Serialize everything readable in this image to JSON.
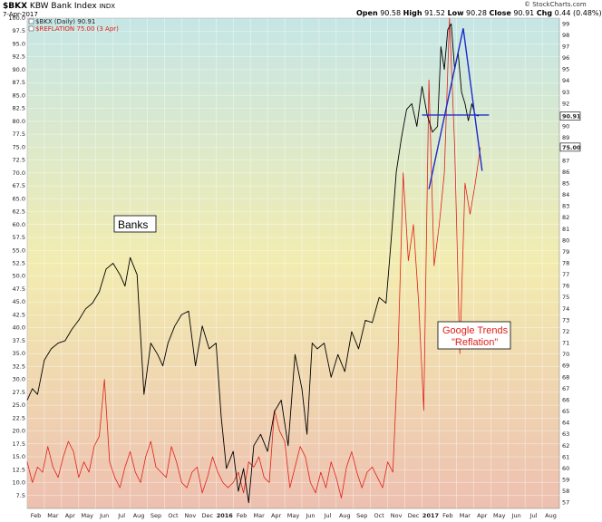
{
  "header": {
    "symbol": "$BKX",
    "name": "KBW Bank Index",
    "exchange": "INDX",
    "date": "7-Apr-2017",
    "open_label": "Open",
    "open": "90.58",
    "high_label": "High",
    "high": "91.52",
    "low_label": "Low",
    "low": "90.28",
    "close_label": "Close",
    "close": "90.91",
    "chg_label": "Chg",
    "chg": "0.44 (0.48%)",
    "logo": "© StockCharts.com"
  },
  "colors": {
    "bkx": "#000000",
    "reflation": "#e0201a",
    "trendline": "#1a2bcc",
    "bg_top": "#c5e6e6",
    "bg_mid": "#f2ecb0",
    "bg_bottom": "#edc0b0"
  },
  "icons": {
    "legend_checkbox": "checkbox-icon",
    "logo": "stockcharts-logo-icon"
  },
  "chart_data": {
    "type": "line",
    "title": "$BKX KBW Bank Index INDX",
    "left_axis": {
      "ylim": [
        5.0,
        100.0
      ],
      "ticks": [
        7.5,
        10.0,
        12.5,
        15.0,
        17.5,
        20.0,
        22.5,
        25.0,
        27.5,
        30.0,
        32.5,
        35.0,
        37.5,
        40.0,
        42.5,
        45.0,
        47.5,
        50.0,
        52.5,
        55.0,
        57.5,
        60.0,
        62.5,
        65.0,
        67.5,
        70.0,
        72.5,
        75.0,
        77.5,
        80.0,
        82.5,
        85.0,
        87.5,
        90.0,
        92.5,
        95.0,
        97.5,
        100.0
      ]
    },
    "right_axis": {
      "ylim": [
        56.5,
        99.5
      ],
      "ticks": [
        57,
        58,
        59,
        60,
        61,
        62,
        63,
        64,
        65,
        66,
        67,
        68,
        69,
        70,
        71,
        72,
        73,
        74,
        75,
        76,
        77,
        78,
        79,
        80,
        81,
        82,
        83,
        84,
        85,
        86,
        87,
        88,
        89,
        90,
        91,
        92,
        93,
        94,
        95,
        96,
        97,
        98,
        99
      ],
      "last_value_badges": [
        "90.91",
        "75.00"
      ]
    },
    "x_axis": {
      "labels": [
        "Feb",
        "Mar",
        "Apr",
        "May",
        "Jun",
        "Jul",
        "Aug",
        "Sep",
        "Oct",
        "Nov",
        "Dec",
        "2016",
        "Feb",
        "Mar",
        "Apr",
        "May",
        "Jun",
        "Jul",
        "Aug",
        "Sep",
        "Oct",
        "Nov",
        "Dec",
        "2017",
        "Feb",
        "Mar",
        "Apr",
        "May",
        "Jun",
        "Jul",
        "Aug"
      ],
      "bold_labels": [
        "2016",
        "2017"
      ],
      "range_months": [
        0,
        31
      ]
    },
    "grid": true,
    "legend_placement": "top-left",
    "series": [
      {
        "name": "$BKX (Daily) 90.91",
        "axis": "right",
        "t": [
          0.0,
          0.3,
          0.6,
          1.0,
          1.4,
          1.8,
          2.2,
          2.6,
          3.0,
          3.4,
          3.8,
          4.2,
          4.6,
          5.0,
          5.4,
          5.7,
          6.0,
          6.4,
          6.8,
          7.2,
          7.6,
          7.9,
          8.2,
          8.6,
          9.0,
          9.4,
          9.8,
          10.2,
          10.6,
          11.0,
          11.3,
          11.6,
          12.0,
          12.3,
          12.6,
          12.9,
          13.2,
          13.6,
          14.0,
          14.4,
          14.8,
          15.2,
          15.6,
          16.0,
          16.3,
          16.6,
          16.9,
          17.3,
          17.7,
          18.1,
          18.5,
          18.9,
          19.3,
          19.7,
          20.1,
          20.5,
          20.9,
          21.2,
          21.5,
          21.8,
          22.1,
          22.4,
          22.7,
          23.0,
          23.3,
          23.6,
          23.9,
          24.1,
          24.3,
          24.5,
          24.7,
          24.9,
          25.1,
          25.3,
          25.5,
          25.7,
          25.9,
          26.1,
          26.3
        ],
        "values": [
          66,
          67,
          66.5,
          69.5,
          70.5,
          71,
          71.2,
          72.2,
          73,
          74,
          74.5,
          75.5,
          77.5,
          78,
          77,
          76,
          78.5,
          77,
          66.5,
          71,
          70,
          69,
          71,
          72.5,
          73.5,
          73.8,
          69,
          72.5,
          70.5,
          71,
          64.5,
          60,
          61.5,
          58,
          60,
          57,
          62,
          63,
          61.5,
          65,
          66,
          62,
          70,
          67,
          63,
          71,
          70.5,
          71,
          68,
          70,
          68.5,
          72,
          70.5,
          73,
          72.8,
          75,
          74.5,
          80,
          86,
          89,
          91.5,
          92,
          90,
          93.5,
          91,
          89.5,
          90,
          97,
          95,
          98.5,
          99,
          95,
          96.5,
          93,
          92,
          90.5,
          92,
          91,
          90.91
        ]
      },
      {
        "name": "$REFLATION 75.00 (3 Apr)",
        "axis": "left",
        "t": [
          0.0,
          0.3,
          0.6,
          0.9,
          1.2,
          1.5,
          1.8,
          2.1,
          2.4,
          2.7,
          3.0,
          3.3,
          3.6,
          3.9,
          4.2,
          4.5,
          4.8,
          5.1,
          5.4,
          5.7,
          6.0,
          6.3,
          6.6,
          6.9,
          7.2,
          7.5,
          7.8,
          8.1,
          8.4,
          8.7,
          9.0,
          9.3,
          9.6,
          9.9,
          10.2,
          10.5,
          10.8,
          11.1,
          11.4,
          11.7,
          12.0,
          12.3,
          12.6,
          12.9,
          13.2,
          13.5,
          13.8,
          14.1,
          14.4,
          14.7,
          15.0,
          15.3,
          15.6,
          15.9,
          16.2,
          16.5,
          16.8,
          17.1,
          17.4,
          17.7,
          18.0,
          18.3,
          18.6,
          18.9,
          19.2,
          19.5,
          19.8,
          20.1,
          20.4,
          20.7,
          21.0,
          21.3,
          21.6,
          21.9,
          22.2,
          22.5,
          22.8,
          23.1,
          23.4,
          23.7,
          24.0,
          24.3,
          24.6,
          24.9,
          25.2,
          25.5,
          25.8,
          26.1,
          26.4
        ],
        "values": [
          14,
          10,
          13,
          12,
          17,
          13,
          11,
          15,
          18,
          16,
          11,
          14,
          12,
          17,
          19,
          30,
          14,
          11,
          9,
          13,
          16,
          12,
          10,
          15,
          18,
          13,
          12,
          11,
          17,
          14,
          10,
          9,
          12,
          13,
          8,
          11,
          15,
          12,
          10,
          9,
          10,
          12,
          8,
          14,
          13,
          15,
          11,
          10,
          24,
          20,
          18,
          9,
          13,
          17,
          15,
          10,
          8,
          12,
          9,
          14,
          11,
          7,
          13,
          16,
          12,
          9,
          12,
          13,
          11,
          9,
          14,
          12,
          35,
          70,
          53,
          60,
          45,
          24,
          88,
          52,
          60,
          70,
          100,
          75,
          35,
          68,
          62,
          68,
          75
        ]
      }
    ],
    "annotations": [
      "Banks",
      "Google Trends",
      "\"Reflation\""
    ]
  }
}
